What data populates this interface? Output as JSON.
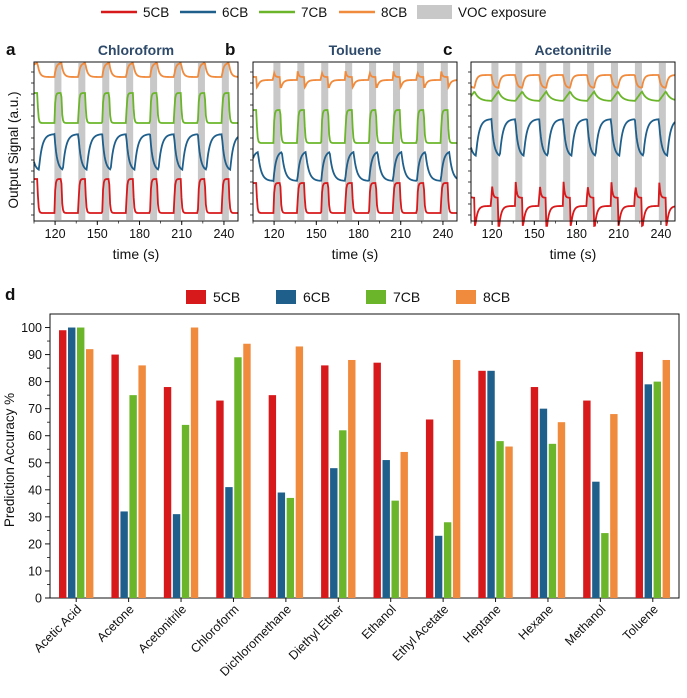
{
  "legend_top": {
    "items": [
      {
        "label": "5CB",
        "color": "#d7191c"
      },
      {
        "label": "6CB",
        "color": "#1f5f8b"
      },
      {
        "label": "7CB",
        "color": "#6bb52a"
      },
      {
        "label": "8CB",
        "color": "#f08a3c"
      }
    ],
    "voc_label": "VOC exposure",
    "voc_color": "#c8c8c8"
  },
  "time_series": {
    "ylabel": "Output Signal (a.u.)",
    "xlabel": "time (s)",
    "xlim": [
      105,
      250
    ],
    "xticks": [
      120,
      150,
      180,
      210,
      240
    ],
    "exposure_windows_s": [
      [
        119.5,
        124.5
      ],
      [
        136.5,
        141.5
      ],
      [
        153.5,
        158.5
      ],
      [
        170.5,
        175.5
      ],
      [
        187.5,
        192.5
      ],
      [
        204.5,
        209.5
      ],
      [
        221.5,
        226.5
      ],
      [
        238.5,
        243.5
      ]
    ],
    "panels": [
      {
        "letter": "a",
        "title": "Chloroform"
      },
      {
        "letter": "b",
        "title": "Toluene"
      },
      {
        "letter": "c",
        "title": "Acetonitrile"
      }
    ]
  },
  "chart_data": {
    "panel_letter": "d",
    "type": "bar",
    "title": "",
    "xlabel": "",
    "ylabel": "Prediction Accuracy %",
    "ylim": [
      0,
      105
    ],
    "yticks": [
      0,
      10,
      20,
      30,
      40,
      50,
      60,
      70,
      80,
      90,
      100
    ],
    "categories": [
      "Acetic Acid",
      "Acetone",
      "Acetonitrile",
      "Chloroform",
      "Dichloromethane",
      "Diethyl Ether",
      "Ethanol",
      "Ethyl Acetate",
      "Heptane",
      "Hexane",
      "Methanol",
      "Toluene"
    ],
    "series": [
      {
        "name": "5CB",
        "color": "#d7191c",
        "values": [
          99,
          90,
          78,
          73,
          75,
          86,
          87,
          66,
          84,
          78,
          73,
          91
        ]
      },
      {
        "name": "6CB",
        "color": "#1f5f8b",
        "values": [
          100,
          32,
          31,
          41,
          39,
          48,
          51,
          23,
          84,
          70,
          43,
          79
        ]
      },
      {
        "name": "7CB",
        "color": "#6bb52a",
        "values": [
          100,
          75,
          64,
          89,
          37,
          62,
          36,
          28,
          58,
          57,
          24,
          80
        ]
      },
      {
        "name": "8CB",
        "color": "#f08a3c",
        "values": [
          92,
          86,
          100,
          94,
          93,
          88,
          54,
          88,
          56,
          65,
          68,
          88
        ]
      }
    ]
  }
}
